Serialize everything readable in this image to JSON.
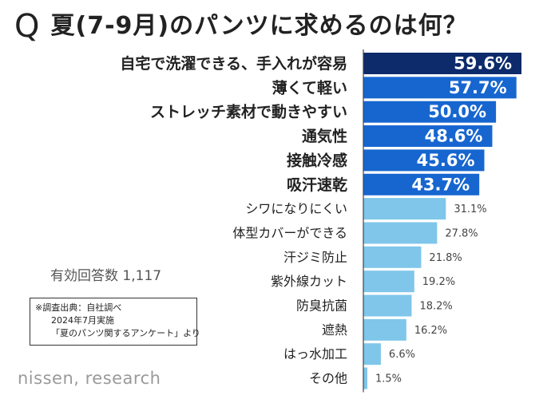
{
  "title": {
    "q_mark": "Q",
    "text": "夏(7-9月)のパンツに求めるのは何？"
  },
  "sample_size": "有効回答数 1,117",
  "source_note": {
    "line1": "※調査出典：自社調べ",
    "line2": "2024年7月実施",
    "line3": "「夏のパンツ関するアンケート」より"
  },
  "brand": "nissen, research",
  "colors": {
    "top": "#0d2a6b",
    "highlight": "#1766d0",
    "normal": "#7fc6ea",
    "axis": "#444444"
  },
  "chart_data": {
    "type": "bar",
    "orientation": "horizontal",
    "categories": [
      "自宅で洗濯できる、手入れが容易",
      "薄くて軽い",
      "ストレッチ素材で動きやすい",
      "通気性",
      "接触冷感",
      "吸汗速乾",
      "シワになりにくい",
      "体型カバーができる",
      "汗ジミ防止",
      "紫外線カット",
      "防臭抗菌",
      "遮熱",
      "はっ水加工",
      "その他"
    ],
    "values": [
      59.6,
      57.7,
      50.0,
      48.6,
      45.6,
      43.7,
      31.1,
      27.8,
      21.8,
      19.2,
      18.2,
      16.2,
      6.6,
      1.5
    ],
    "labels": [
      "59.6%",
      "57.7%",
      "50.0%",
      "48.6%",
      "45.6%",
      "43.7%",
      "31.1%",
      "27.8%",
      "21.8%",
      "19.2%",
      "18.2%",
      "16.2%",
      "6.6%",
      "1.5%"
    ],
    "highlight_count": 6,
    "unit": "%",
    "xlim": [
      0,
      60
    ]
  }
}
